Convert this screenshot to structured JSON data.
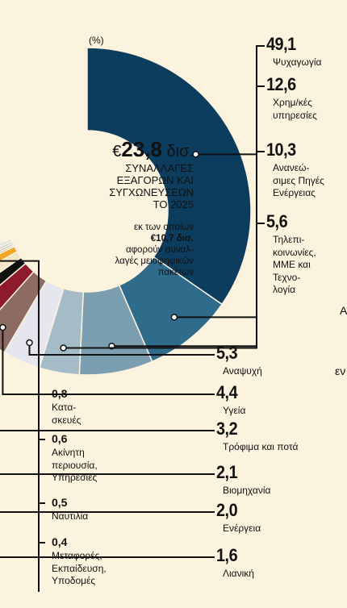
{
  "chart_data": {
    "type": "pie",
    "unit_label": "(%)",
    "center": {
      "total_prefix": "€",
      "total_value": "23,8",
      "total_unit": " δισ.",
      "title_lines": [
        "ΣΥΝΑΛΛΑΓΕΣ",
        "ΕΞΑΓΟΡΩΝ ΚΑΙ",
        "ΣΥΓΧΩΝΕΥΣΕΩΝ",
        "ΤΟ 2025"
      ],
      "note_line1": "εκ των οποίων",
      "note_value": "€10,7 δισ.",
      "note_lines": [
        "αφορούν συναλ-",
        "λαγές μειοψηφικών",
        "πακέτων"
      ]
    },
    "slices": [
      {
        "label_lines": [
          "Ψυχαγωγία"
        ],
        "value": 49.1,
        "value_text": "49,1",
        "color": "#0d3d5e"
      },
      {
        "label_lines": [
          "Χρημ/κές",
          "υπηρεσίες"
        ],
        "value": 12.6,
        "value_text": "12,6",
        "color": "#2f6b8b"
      },
      {
        "label_lines": [
          "Ανανεώ-",
          "σιμες Πηγές",
          "Ενέργειας"
        ],
        "value": 10.3,
        "value_text": "10,3",
        "color": "#7c9eb1"
      },
      {
        "label_lines": [
          "Τηλεπι-",
          "κοινωνίες,",
          "ΜΜΕ και",
          "Τεχνο-",
          "λογία"
        ],
        "value": 5.6,
        "value_text": "5,6",
        "color": "#a5bcc8"
      },
      {
        "label_lines": [
          "Αναψυχή"
        ],
        "value": 5.3,
        "value_text": "5,3",
        "color": "#e6e6ee"
      },
      {
        "label_lines": [
          "Υγεία"
        ],
        "value": 4.4,
        "value_text": "4,4",
        "color": "#8b6b62"
      },
      {
        "label_lines": [
          "Τρόφιμα και ποτά"
        ],
        "value": 3.2,
        "value_text": "3,2",
        "color": "#8e1a2e"
      },
      {
        "label_lines": [
          "Βιομηχανία"
        ],
        "value": 2.1,
        "value_text": "2,1",
        "color": "#111111"
      },
      {
        "label_lines": [
          "Ενέργεια"
        ],
        "value": 2.0,
        "value_text": "2,0",
        "color": "#f3e6c4"
      },
      {
        "label_lines": [
          "Λιανική"
        ],
        "value": 1.6,
        "value_text": "1,6",
        "color": "#f0a626"
      },
      {
        "label_lines": [
          "Μεταφορές,",
          "Εκπαίδευση,",
          "Υποδομές"
        ],
        "value": 0.4,
        "value_text": "0,4",
        "color": "#9aa0a6"
      },
      {
        "label_lines": [
          "Ναυτιλία"
        ],
        "value": 0.5,
        "value_text": "0,5",
        "color": "#b7bcc1"
      },
      {
        "label_lines": [
          "Ακίνητη",
          "περιουσία,",
          "Υπηρεσίες"
        ],
        "value": 0.6,
        "value_text": "0,6",
        "color": "#cdd1d5"
      },
      {
        "label_lines": [
          "Κατα-",
          "σκευές"
        ],
        "value": 0.8,
        "value_text": "0,8",
        "color": "#e2e4e7"
      }
    ],
    "edge_text": [
      "Α",
      "εν"
    ]
  }
}
